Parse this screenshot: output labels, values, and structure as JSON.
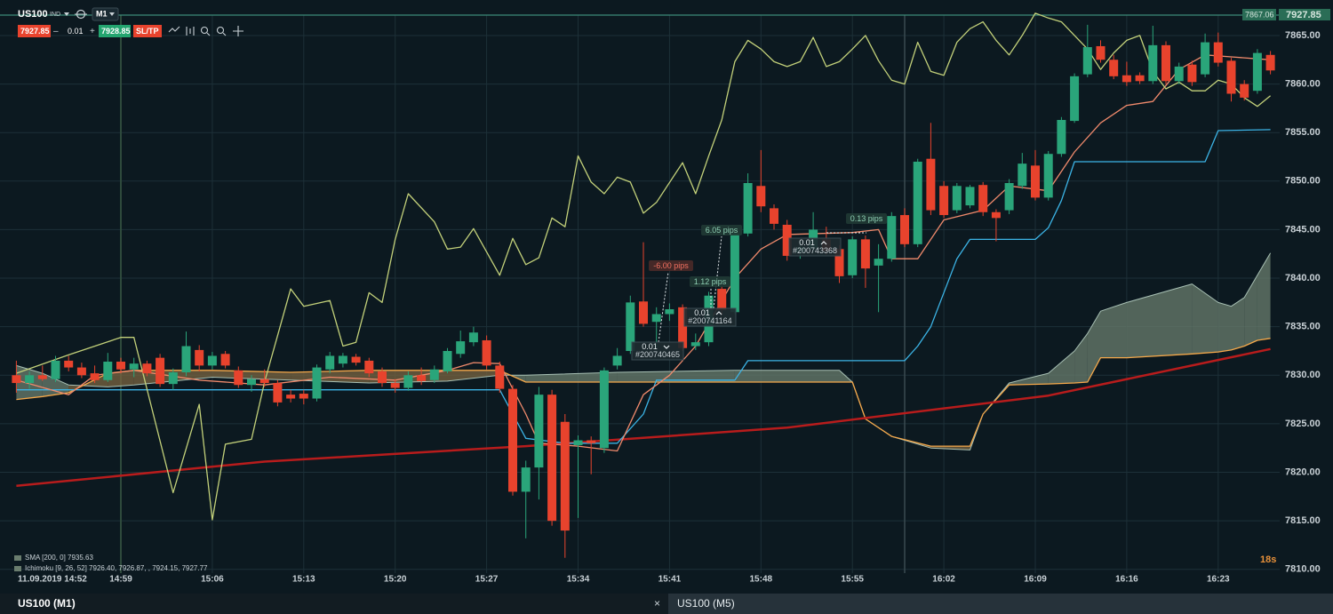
{
  "toolbar": {
    "symbol": "US100",
    "symbol_type": "IND",
    "timeframe": "M1",
    "sell_price": "7927.85",
    "minus": "–",
    "lot": "0.01",
    "plus": "+",
    "buy_price": "7928.85",
    "sltp": "SL/TP"
  },
  "chart_data": {
    "type": "candlestick",
    "x": [
      "14:51",
      "14:52",
      "14:53",
      "14:54",
      "14:55",
      "14:56",
      "14:57",
      "14:58",
      "14:59",
      "15:00",
      "15:01",
      "15:02",
      "15:03",
      "15:04",
      "15:05",
      "15:06",
      "15:07",
      "15:08",
      "15:09",
      "15:10",
      "15:11",
      "15:12",
      "15:13",
      "15:14",
      "15:15",
      "15:16",
      "15:17",
      "15:18",
      "15:19",
      "15:20",
      "15:21",
      "15:22",
      "15:23",
      "15:24",
      "15:25",
      "15:26",
      "15:27",
      "15:28",
      "15:29",
      "15:30",
      "15:31",
      "15:32",
      "15:33",
      "15:34",
      "15:35",
      "15:36",
      "15:37",
      "15:38",
      "15:39",
      "15:40",
      "15:41",
      "15:42",
      "15:43",
      "15:44",
      "15:45",
      "15:46",
      "15:47",
      "15:48",
      "15:49",
      "15:50",
      "15:51",
      "15:52",
      "15:53",
      "15:54",
      "15:55",
      "15:56",
      "15:57",
      "15:58",
      "15:59",
      "16:00",
      "16:01",
      "16:02",
      "16:03",
      "16:04",
      "16:05",
      "16:06",
      "16:07",
      "16:08",
      "16:09",
      "16:10",
      "16:11",
      "16:12",
      "16:13",
      "16:14",
      "16:15",
      "16:16",
      "16:17",
      "16:18",
      "16:19",
      "16:20",
      "16:21",
      "16:22",
      "16:23",
      "16:24",
      "16:25",
      "16:26",
      "16:27"
    ],
    "ohlc": [
      [
        7830,
        7831.5,
        7828.2,
        7829.2
      ],
      [
        7829.2,
        7830.4,
        7828.6,
        7830
      ],
      [
        7830,
        7831,
        7829.4,
        7829.6
      ],
      [
        7829.6,
        7832,
        7829.3,
        7831.5
      ],
      [
        7831.5,
        7832,
        7830.4,
        7830.8
      ],
      [
        7830.8,
        7831.3,
        7829.7,
        7830
      ],
      [
        7830.2,
        7831,
        7829.2,
        7829.5
      ],
      [
        7829.5,
        7832.3,
        7829.3,
        7831.4
      ],
      [
        7831.4,
        7831.8,
        7830.2,
        7830.6
      ],
      [
        7830.6,
        7831.8,
        7829.8,
        7831.2
      ],
      [
        7831.2,
        7831.5,
        7829.9,
        7830.2
      ],
      [
        7831.8,
        7832.2,
        7828.8,
        7829.1
      ],
      [
        7829.1,
        7830.7,
        7828.5,
        7830.3
      ],
      [
        7830.3,
        7834.5,
        7829.9,
        7833
      ],
      [
        7832.6,
        7833.1,
        7830.4,
        7831
      ],
      [
        7831,
        7832.4,
        7830.6,
        7832
      ],
      [
        7832.2,
        7832.5,
        7830.7,
        7831
      ],
      [
        7830.5,
        7830.9,
        7828.7,
        7829
      ],
      [
        7829,
        7830,
        7828.3,
        7829.6
      ],
      [
        7829.6,
        7830.6,
        7828.8,
        7829.2
      ],
      [
        7829.2,
        7829.5,
        7826.8,
        7827.2
      ],
      [
        7828,
        7828.5,
        7827.2,
        7827.6
      ],
      [
        7828.1,
        7828.5,
        7827,
        7827.6
      ],
      [
        7827.6,
        7831.1,
        7827.3,
        7830.8
      ],
      [
        7830.6,
        7832.4,
        7830.2,
        7832
      ],
      [
        7831.2,
        7832.3,
        7830.8,
        7832
      ],
      [
        7831.9,
        7832.2,
        7831,
        7831.3
      ],
      [
        7831.5,
        7831.8,
        7829.8,
        7830.2
      ],
      [
        7830.4,
        7830.8,
        7828.8,
        7829.2
      ],
      [
        7829.2,
        7829.6,
        7828.2,
        7828.7
      ],
      [
        7828.7,
        7830.4,
        7828.4,
        7830
      ],
      [
        7830,
        7830.8,
        7829,
        7829.4
      ],
      [
        7829.5,
        7831,
        7829.2,
        7830.6
      ],
      [
        7830.4,
        7832.8,
        7830.2,
        7832.5
      ],
      [
        7832.2,
        7834.6,
        7831.8,
        7833.5
      ],
      [
        7833.4,
        7835,
        7833,
        7834.4
      ],
      [
        7833.6,
        7834.1,
        7830.6,
        7831
      ],
      [
        7831,
        7831.4,
        7828.2,
        7828.6
      ],
      [
        7828.6,
        7829,
        7817.6,
        7818
      ],
      [
        7818,
        7821.2,
        7813.2,
        7820.5
      ],
      [
        7820.5,
        7828.8,
        7817.2,
        7828
      ],
      [
        7828,
        7828.5,
        7814.5,
        7815
      ],
      [
        7825.2,
        7826,
        7811.2,
        7814
      ],
      [
        7822.8,
        7823.8,
        7815.3,
        7823.3
      ],
      [
        7823.3,
        7823.7,
        7819.8,
        7823
      ],
      [
        7822.5,
        7830.8,
        7822,
        7830.5
      ],
      [
        7831,
        7832.8,
        7830.6,
        7832
      ],
      [
        7832.5,
        7838.2,
        7832.2,
        7837.5
      ],
      [
        7837.6,
        7843.7,
        7835,
        7835.3
      ],
      [
        7835.5,
        7837,
        7832.8,
        7836.3
      ],
      [
        7836.3,
        7837.4,
        7835.6,
        7836.8
      ],
      [
        7837,
        7837.3,
        7832.5,
        7832.8
      ],
      [
        7833,
        7834.3,
        7832.6,
        7833.4
      ],
      [
        7833.4,
        7838.6,
        7833,
        7838.2
      ],
      [
        7838.9,
        7839.2,
        7836.2,
        7836.7
      ],
      [
        7836.5,
        7845,
        7836.3,
        7844.6
      ],
      [
        7844.6,
        7850.8,
        7844.3,
        7849.8
      ],
      [
        7849.5,
        7853.2,
        7846.8,
        7847.4
      ],
      [
        7847.2,
        7847.6,
        7845,
        7845.6
      ],
      [
        7845.5,
        7846,
        7841.8,
        7842.3
      ],
      [
        7842.6,
        7843.8,
        7842,
        7843.2
      ],
      [
        7843,
        7846.8,
        7842.6,
        7845
      ],
      [
        7844,
        7845.3,
        7842.4,
        7842.8
      ],
      [
        7843,
        7843.4,
        7839.5,
        7840.2
      ],
      [
        7840.3,
        7844.3,
        7840,
        7844
      ],
      [
        7844,
        7844.4,
        7839,
        7841
      ],
      [
        7841.3,
        7843.5,
        7836.5,
        7842
      ],
      [
        7842,
        7846.8,
        7841.7,
        7846.4
      ],
      [
        7846.5,
        7847.2,
        7843.2,
        7843.5
      ],
      [
        7843.5,
        7852.3,
        7843.2,
        7852
      ],
      [
        7852.3,
        7856,
        7846.5,
        7847
      ],
      [
        7849.5,
        7850,
        7846.2,
        7846.5
      ],
      [
        7847,
        7849.8,
        7846.7,
        7849.5
      ],
      [
        7847.5,
        7849.6,
        7847.2,
        7849.4
      ],
      [
        7849.6,
        7849.9,
        7846.4,
        7846.8
      ],
      [
        7846.8,
        7847.1,
        7843.8,
        7846.2
      ],
      [
        7847,
        7850.2,
        7846.6,
        7849.8
      ],
      [
        7849.5,
        7852.9,
        7849.2,
        7851.8
      ],
      [
        7851.6,
        7853.2,
        7848,
        7848.3
      ],
      [
        7848.3,
        7853.1,
        7848,
        7852.8
      ],
      [
        7852.8,
        7856.6,
        7852.5,
        7856.3
      ],
      [
        7856.2,
        7861.1,
        7856,
        7860.8
      ],
      [
        7861,
        7866.1,
        7860.7,
        7863.8
      ],
      [
        7863.9,
        7864.5,
        7862.2,
        7862.5
      ],
      [
        7862.5,
        7863,
        7860.5,
        7860.8
      ],
      [
        7860.9,
        7862.3,
        7859.8,
        7860.2
      ],
      [
        7860.9,
        7861.2,
        7860,
        7860.3
      ],
      [
        7860.3,
        7866,
        7860,
        7864
      ],
      [
        7864,
        7864.4,
        7860,
        7860.3
      ],
      [
        7860.3,
        7862.2,
        7860,
        7861.8
      ],
      [
        7862,
        7862.4,
        7859.8,
        7860.2
      ],
      [
        7861,
        7865.2,
        7860.7,
        7864.3
      ],
      [
        7864.3,
        7865.3,
        7861.8,
        7862.2
      ],
      [
        7862.4,
        7862.7,
        7858.2,
        7859
      ],
      [
        7860,
        7860.4,
        7858.3,
        7858.6
      ],
      [
        7859.3,
        7863.6,
        7859,
        7863.2
      ],
      [
        7863,
        7863.4,
        7861,
        7861.4
      ]
    ],
    "up_color": "#2aa57a",
    "down_color": "#e8432d",
    "cloud": {
      "x": [
        "14:51",
        "14:53",
        "14:55",
        "14:58",
        "15:00",
        "15:06",
        "15:12",
        "15:18",
        "15:24",
        "15:28",
        "15:30",
        "15:37",
        "15:46",
        "15:54",
        "15:55",
        "15:56",
        "15:58",
        "16:01",
        "16:04",
        "16:05",
        "16:07",
        "16:10",
        "16:12",
        "16:13",
        "16:14",
        "16:16",
        "16:21",
        "16:23",
        "16:24",
        "16:25",
        "16:26",
        "16:27"
      ],
      "span_a": [
        7827.5,
        7827.8,
        7828.2,
        7830.2,
        7830.5,
        7830.5,
        7830.3,
        7830.5,
        7830.5,
        7830.5,
        7829.3,
        7829.3,
        7829.3,
        7829.3,
        7829.3,
        7825.5,
        7823.7,
        7822.7,
        7822.7,
        7826,
        7829,
        7829.1,
        7829.2,
        7829.3,
        7831.8,
        7831.8,
        7832.2,
        7832.4,
        7832.6,
        7833,
        7833.6,
        7833.8
      ],
      "span_b": [
        7831,
        7830.2,
        7829,
        7828.8,
        7829,
        7829.8,
        7829.5,
        7829.2,
        7829.4,
        7830,
        7830,
        7830.3,
        7830.5,
        7830.5,
        7829.3,
        7825.5,
        7823.7,
        7822.5,
        7822.3,
        7826,
        7829.2,
        7830.2,
        7832.5,
        7834.3,
        7836.6,
        7837.5,
        7839.4,
        7837.5,
        7837.1,
        7838,
        7840.3,
        7842.6
      ],
      "span_a_color": "#f5a84a",
      "span_b_color": "#a8c0b4",
      "bull_color": "#6a7d6e",
      "bear_color": "#7a6440"
    },
    "overlays": [
      {
        "color": "#b81c1c",
        "width": 2.5,
        "x": [
          "14:51",
          "15:10",
          "15:30",
          "15:50",
          "16:10",
          "16:27"
        ],
        "values": [
          7818.6,
          7821.1,
          7822.7,
          7824.6,
          7827.9,
          7832.7
        ]
      },
      {
        "color": "#3cb4e6",
        "width": 1.3,
        "x": [
          "14:51",
          "15:28",
          "15:30",
          "15:33",
          "15:37",
          "15:39",
          "15:40",
          "15:46",
          "15:47",
          "15:59",
          "16:00",
          "16:01",
          "16:03",
          "16:04",
          "16:09",
          "16:10",
          "16:11",
          "16:12",
          "16:22",
          "16:23",
          "16:27"
        ],
        "values": [
          7828.5,
          7828.5,
          7823.5,
          7823,
          7823,
          7826,
          7829.5,
          7829.5,
          7831.5,
          7831.5,
          7833,
          7835,
          7842,
          7844,
          7844,
          7845.2,
          7848,
          7852,
          7852,
          7855.2,
          7855.3
        ]
      },
      {
        "color": "#f08a6c",
        "width": 1.3,
        "x": [
          "14:51",
          "14:55",
          "14:57",
          "15:00",
          "15:05",
          "15:10",
          "15:15",
          "15:20",
          "15:24",
          "15:26",
          "15:28",
          "15:30",
          "15:31",
          "15:34",
          "15:37",
          "15:39",
          "15:41",
          "15:43",
          "15:46",
          "15:48",
          "15:50",
          "15:55",
          "15:57",
          "15:58",
          "16:00",
          "16:02",
          "16:05",
          "16:07",
          "16:10",
          "16:12",
          "16:14",
          "16:16",
          "16:18",
          "16:20",
          "16:22",
          "16:24",
          "16:27"
        ],
        "values": [
          7829.5,
          7828,
          7830,
          7830.5,
          7829.5,
          7829,
          7829.8,
          7829.5,
          7830.5,
          7831.3,
          7831.2,
          7826,
          7823,
          7822.7,
          7822.2,
          7828,
          7830,
          7833,
          7840,
          7843,
          7844.5,
          7844.7,
          7845,
          7842,
          7842,
          7846,
          7847,
          7849.5,
          7849,
          7853,
          7856,
          7857.8,
          7858.2,
          7861.5,
          7863,
          7862.8,
          7862.5
        ]
      },
      {
        "color": "#c3d17a",
        "width": 1.3,
        "x": [
          "14:51",
          "14:55",
          "14:59",
          "15:00",
          "15:03",
          "15:05",
          "15:06",
          "15:07",
          "15:09",
          "15:10",
          "15:12",
          "15:13",
          "15:15",
          "15:16",
          "15:17",
          "15:18",
          "15:19",
          "15:20",
          "15:21",
          "15:23",
          "15:24",
          "15:25",
          "15:26",
          "15:28",
          "15:29",
          "15:30",
          "15:31",
          "15:32",
          "15:33",
          "15:34",
          "15:35",
          "15:36",
          "15:37",
          "15:38",
          "15:39",
          "15:40",
          "15:42",
          "15:43",
          "15:44",
          "15:45",
          "15:46",
          "15:47",
          "15:48",
          "15:49",
          "15:50",
          "15:51",
          "15:52",
          "15:53",
          "15:54",
          "15:55",
          "15:56",
          "15:57",
          "15:58",
          "15:59",
          "16:00",
          "16:01",
          "16:02",
          "16:03",
          "16:04",
          "16:05",
          "16:06",
          "16:07",
          "16:08",
          "16:09",
          "16:10",
          "16:11",
          "16:12",
          "16:13",
          "16:14",
          "16:15",
          "16:16",
          "16:17",
          "16:18",
          "16:19",
          "16:20",
          "16:21",
          "16:22",
          "16:23",
          "16:24",
          "16:25",
          "16:26",
          "16:27"
        ],
        "values": [
          7830.2,
          7832.1,
          7833.9,
          7833.9,
          7817.9,
          7827,
          7815.1,
          7822.9,
          7823.4,
          7829.3,
          7838.9,
          7837.1,
          7837.7,
          7833,
          7833.4,
          7838.5,
          7837.5,
          7844,
          7848.7,
          7845.8,
          7843,
          7843.2,
          7845.1,
          7840.3,
          7844.1,
          7841.4,
          7842.1,
          7846.2,
          7845.3,
          7852.6,
          7849.9,
          7848.7,
          7850.4,
          7849.9,
          7846.7,
          7847.8,
          7851.9,
          7848.7,
          7852.6,
          7856.3,
          7862.3,
          7864.5,
          7863.6,
          7862.3,
          7861.8,
          7862.3,
          7864.8,
          7861.8,
          7862.3,
          7863.6,
          7865,
          7862.4,
          7860.4,
          7860,
          7864.3,
          7861.3,
          7860.9,
          7864.3,
          7865.7,
          7866.4,
          7864.5,
          7863,
          7865,
          7867.3,
          7866.8,
          7866.4,
          7865,
          7863.6,
          7861.5,
          7863.2,
          7864.5,
          7865,
          7861.3,
          7859.5,
          7860.2,
          7859.3,
          7859.3,
          7860.4,
          7860,
          7858.6,
          7857.7,
          7858.8
        ]
      }
    ],
    "ylim": [
      7808.7,
      7867.1
    ],
    "yticks": [
      {
        "value": 7810,
        "label": "7810.00"
      },
      {
        "value": 7815,
        "label": "7815.00"
      },
      {
        "value": 7820,
        "label": "7820.00"
      },
      {
        "value": 7825,
        "label": "7825.00"
      },
      {
        "value": 7830,
        "label": "7830.00"
      },
      {
        "value": 7835,
        "label": "7835.00"
      },
      {
        "value": 7840,
        "label": "7840.00"
      },
      {
        "value": 7845,
        "label": "7845.00"
      },
      {
        "value": 7850,
        "label": "7850.00"
      },
      {
        "value": 7855,
        "label": "7855.00"
      },
      {
        "value": 7860,
        "label": "7860.00"
      },
      {
        "value": 7865,
        "label": "7865.00"
      }
    ],
    "xticks": [
      "14:59",
      "15:06",
      "15:13",
      "15:20",
      "15:27",
      "15:34",
      "15:41",
      "15:48",
      "15:55",
      "16:02",
      "16:09",
      "16:16",
      "16:23"
    ],
    "grid": true,
    "x_start_label": "11.09.2019 14:52",
    "legend": [
      "SMA [200, 0] 7935.63",
      "Ichimoku [9, 26, 52] 7926.40, 7926.87, , 7924.15, 7927.77"
    ],
    "price_tags": [
      "7867.06",
      "7927.85"
    ],
    "countdown": "18s"
  },
  "annotations": {
    "pips": [
      "-6.00 pips",
      "1.12 pips",
      "6.05 pips",
      "0.13 pips"
    ],
    "orders": [
      {
        "lot": "0.01",
        "ticket": "#200740465"
      },
      {
        "lot": "0.01",
        "ticket": "#200741164"
      },
      {
        "lot": "0.01",
        "ticket": "#200743368"
      }
    ]
  },
  "tabs": [
    "US100 (M1)",
    "US100 (M5)"
  ],
  "tab_close": "×"
}
